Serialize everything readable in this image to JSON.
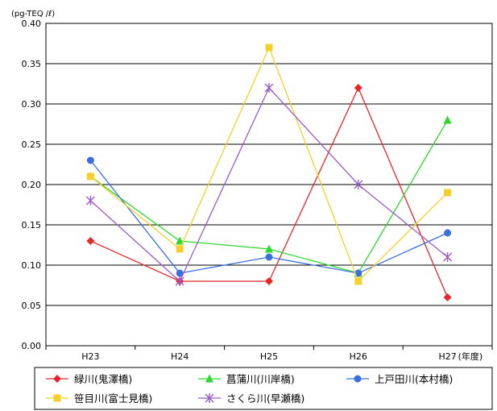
{
  "chart_data": {
    "type": "line",
    "unit_label": "(pg-TEQ /ℓ)",
    "categories": [
      "H23",
      "H24",
      "H25",
      "H26",
      "H27"
    ],
    "x_unit_suffix": "(年度)",
    "ylim": [
      0,
      0.4
    ],
    "y_ticks": [
      "0.00",
      "0.05",
      "0.10",
      "0.15",
      "0.20",
      "0.25",
      "0.30",
      "0.35",
      "0.40"
    ],
    "grid": true,
    "legend_position": "bottom",
    "series": [
      {
        "name": "緑川(鬼澤橋)",
        "color": "#e8262a",
        "marker": "diamond",
        "values": [
          0.13,
          0.08,
          0.08,
          0.32,
          0.06
        ]
      },
      {
        "name": "菖蒲川(川岸橋)",
        "color": "#2ed62e",
        "marker": "triangle",
        "values": [
          0.21,
          0.13,
          0.12,
          0.09,
          0.28
        ]
      },
      {
        "name": "上戸田川(本村橋)",
        "color": "#3b6fe0",
        "marker": "circle",
        "values": [
          0.23,
          0.09,
          0.11,
          0.09,
          0.14
        ]
      },
      {
        "name": "笹目川(富士見橋)",
        "color": "#f6d02a",
        "marker": "square",
        "values": [
          0.21,
          0.12,
          0.37,
          0.08,
          0.19
        ]
      },
      {
        "name": "さくら川(早瀬橋)",
        "color": "#9a5cc6",
        "marker": "asterisk",
        "values": [
          0.18,
          0.08,
          0.32,
          0.2,
          0.11
        ]
      }
    ]
  }
}
